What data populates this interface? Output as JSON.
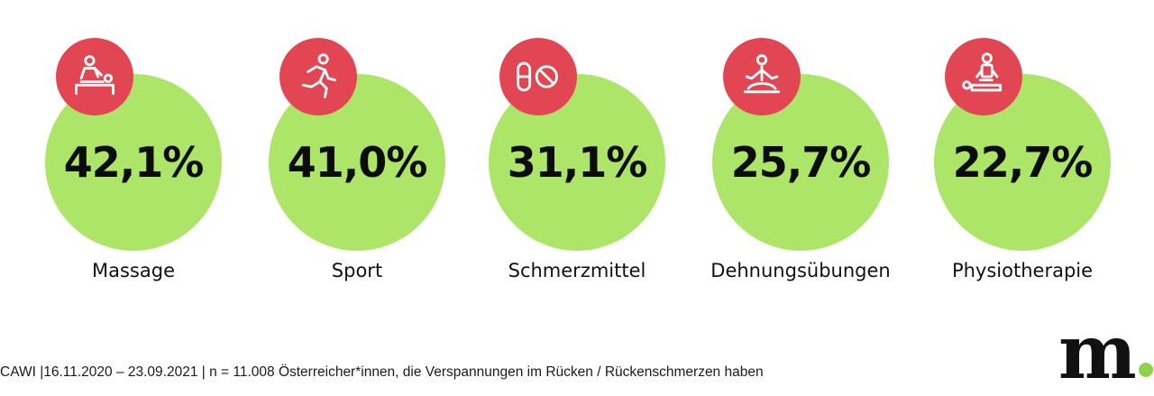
{
  "colors": {
    "circle": "#ace567",
    "badge": "#e24653",
    "icon": "#ffffff",
    "logo_dot": "#8fd24b"
  },
  "chart_data": {
    "type": "bubble",
    "title": "",
    "categories": [
      "Massage",
      "Sport",
      "Schmerzmittel",
      "Dehnungsübungen",
      "Physiotherapie"
    ],
    "values": [
      42.1,
      41.0,
      31.1,
      25.7,
      22.7
    ],
    "value_labels": [
      "42,1%",
      "41,0%",
      "31,1%",
      "25,7%",
      "22,7%"
    ],
    "icons": [
      "massage-icon",
      "running-icon",
      "pills-icon",
      "meditation-icon",
      "physiotherapy-icon"
    ],
    "unit": "%"
  },
  "footnote": "CAWI |16.11.2020 – 23.09.2021 | n = 11.008 Österreicher*innen, die Verspannungen im Rücken / Rückenschmerzen haben",
  "logo": {
    "text": "m"
  }
}
